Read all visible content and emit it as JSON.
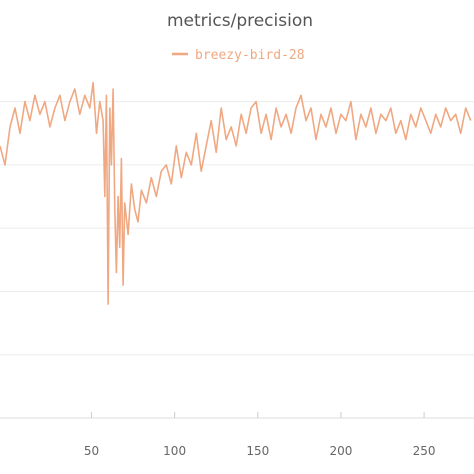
{
  "chart_data": {
    "type": "line",
    "title": "metrics/precision",
    "xlabel": "",
    "ylabel": "",
    "legend": {
      "position": "top-center"
    },
    "grid": true,
    "xlim": [
      -5,
      280
    ],
    "ylim": [
      0.45,
      1.0
    ],
    "x_ticks": [
      50,
      100,
      150,
      200,
      250
    ],
    "y_gridlines": [
      0.55,
      0.65,
      0.75,
      0.85,
      0.95
    ],
    "series": [
      {
        "name": "breezy-bird-28",
        "color": "#f0a882",
        "x": [
          -5,
          -2,
          1,
          4,
          7,
          10,
          13,
          16,
          19,
          22,
          25,
          28,
          31,
          34,
          37,
          40,
          43,
          46,
          49,
          51,
          53,
          55,
          57,
          58,
          59,
          60,
          61,
          62,
          63,
          64,
          65,
          66,
          67,
          68,
          69,
          70,
          72,
          74,
          76,
          78,
          80,
          83,
          86,
          89,
          92,
          95,
          98,
          101,
          104,
          107,
          110,
          113,
          116,
          119,
          122,
          125,
          128,
          131,
          134,
          137,
          140,
          143,
          146,
          149,
          152,
          155,
          158,
          161,
          164,
          167,
          170,
          173,
          176,
          179,
          182,
          185,
          188,
          191,
          194,
          197,
          200,
          203,
          206,
          209,
          212,
          215,
          218,
          221,
          224,
          227,
          230,
          233,
          236,
          239,
          242,
          245,
          248,
          251,
          254,
          257,
          260,
          263,
          266,
          269,
          272,
          275,
          278
        ],
        "y": [
          0.88,
          0.85,
          0.91,
          0.94,
          0.9,
          0.95,
          0.92,
          0.96,
          0.93,
          0.95,
          0.91,
          0.94,
          0.96,
          0.92,
          0.95,
          0.97,
          0.93,
          0.96,
          0.94,
          0.98,
          0.9,
          0.95,
          0.92,
          0.8,
          0.96,
          0.63,
          0.94,
          0.85,
          0.97,
          0.78,
          0.68,
          0.8,
          0.72,
          0.86,
          0.66,
          0.79,
          0.74,
          0.82,
          0.78,
          0.76,
          0.81,
          0.79,
          0.83,
          0.8,
          0.84,
          0.85,
          0.82,
          0.88,
          0.83,
          0.87,
          0.85,
          0.9,
          0.84,
          0.88,
          0.92,
          0.87,
          0.94,
          0.89,
          0.91,
          0.88,
          0.93,
          0.9,
          0.94,
          0.95,
          0.9,
          0.93,
          0.89,
          0.94,
          0.91,
          0.93,
          0.9,
          0.94,
          0.96,
          0.92,
          0.94,
          0.89,
          0.93,
          0.91,
          0.94,
          0.9,
          0.93,
          0.92,
          0.95,
          0.89,
          0.93,
          0.91,
          0.94,
          0.9,
          0.93,
          0.92,
          0.94,
          0.9,
          0.92,
          0.89,
          0.93,
          0.91,
          0.94,
          0.92,
          0.9,
          0.93,
          0.91,
          0.94,
          0.92,
          0.93,
          0.9,
          0.94,
          0.92
        ]
      }
    ]
  }
}
